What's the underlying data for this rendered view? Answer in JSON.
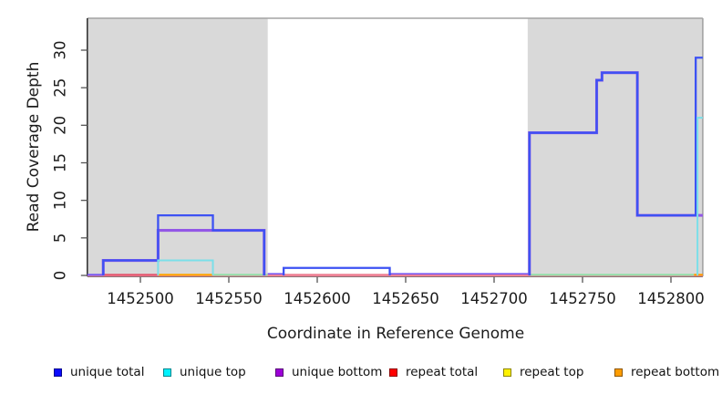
{
  "chart_data": {
    "type": "line",
    "step": true,
    "xlabel": "Coordinate in Reference Genome",
    "ylabel": "Read Coverage Depth",
    "xlim": [
      1452470,
      1452818
    ],
    "ylim": [
      0,
      34
    ],
    "xticks": [
      1452500,
      1452550,
      1452600,
      1452650,
      1452700,
      1452750,
      1452800
    ],
    "yticks": [
      0,
      5,
      10,
      15,
      20,
      25,
      30
    ],
    "grid": false,
    "legend_position": "bottom",
    "shaded_regions": [
      {
        "from": 1452470,
        "to": 1452572
      },
      {
        "from": 1452719,
        "to": 1452818
      }
    ],
    "series": [
      {
        "name": "unique total",
        "line_color": "#3d52f3",
        "steps": [
          [
            1452470,
            0
          ],
          [
            1452479,
            2
          ],
          [
            1452510,
            8
          ],
          [
            1452541,
            6
          ],
          [
            1452570,
            0
          ],
          [
            1452581,
            1
          ],
          [
            1452641,
            0
          ],
          [
            1452720,
            19
          ],
          [
            1452758,
            26
          ],
          [
            1452761,
            27
          ],
          [
            1452781,
            8
          ],
          [
            1452814,
            29
          ]
        ]
      },
      {
        "name": "unique top",
        "line_color": "#7bdfe9",
        "steps": [
          [
            1452470,
            0
          ],
          [
            1452510,
            2
          ],
          [
            1452541,
            0
          ],
          [
            1452815,
            21
          ]
        ]
      },
      {
        "name": "unique bottom",
        "line_color": "#9357e6",
        "steps": [
          [
            1452470,
            0
          ],
          [
            1452479,
            2
          ],
          [
            1452510,
            6
          ],
          [
            1452570,
            0
          ],
          [
            1452720,
            19
          ],
          [
            1452758,
            26
          ],
          [
            1452761,
            27
          ],
          [
            1452781,
            8
          ]
        ]
      },
      {
        "name": "repeat total",
        "line_color": "#ee6e84",
        "steps": [
          [
            1452470,
            0
          ]
        ]
      },
      {
        "name": "repeat top",
        "line_color": "#ffe800",
        "steps": [
          [
            1452470,
            0
          ]
        ]
      },
      {
        "name": "repeat bottom",
        "line_color": "#ffa500",
        "steps": [
          [
            1452470,
            0
          ]
        ]
      }
    ],
    "baseline_segments": [
      {
        "from": 1452470,
        "to": 1452479,
        "color": "#7a5af0"
      },
      {
        "from": 1452479,
        "to": 1452510,
        "color": "#e4566e"
      },
      {
        "from": 1452510,
        "to": 1452541,
        "color": "#ffa500"
      },
      {
        "from": 1452541,
        "to": 1452572,
        "color": "#92dfa8"
      },
      {
        "from": 1452572,
        "to": 1452720,
        "color": "#ee7e92"
      },
      {
        "from": 1452720,
        "to": 1452813,
        "color": "#92dfa8"
      },
      {
        "from": 1452813,
        "to": 1452818,
        "color": "#ff9b00"
      }
    ],
    "baseline_overlays": [
      {
        "from": 1452572,
        "to": 1452581,
        "color": "#7a5af0"
      },
      {
        "from": 1452641,
        "to": 1452720,
        "color": "#7a5af0"
      }
    ]
  },
  "legend": {
    "items": [
      {
        "label": "unique total",
        "swatch_color": "#0b0bff"
      },
      {
        "label": "unique top",
        "swatch_color": "#00f2ff"
      },
      {
        "label": "unique bottom",
        "swatch_color": "#9d00d8"
      },
      {
        "label": "repeat total",
        "swatch_color": "#ff0000"
      },
      {
        "label": "repeat top",
        "swatch_color": "#fff200"
      },
      {
        "label": "repeat bottom",
        "swatch_color": "#ff9d00"
      }
    ]
  },
  "colors": {
    "shade": "#d9d9d9",
    "box_border": "#a3a3a3",
    "axis": "#1c1c1c",
    "under_row_pink": "#f0899c"
  }
}
